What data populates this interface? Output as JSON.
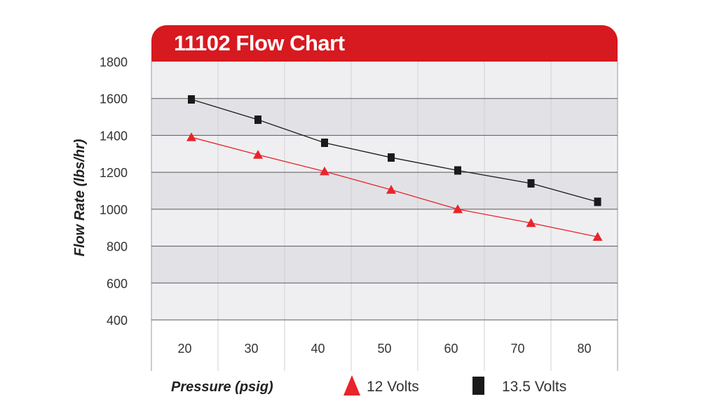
{
  "chart_data": {
    "type": "line",
    "title": "11102 Flow Chart",
    "xlabel": "Pressure (psig)",
    "ylabel": "Flow Rate (lbs/hr)",
    "xlim": [
      15,
      85
    ],
    "ylim": [
      400,
      1800
    ],
    "x_ticks": [
      20,
      30,
      40,
      50,
      60,
      70,
      80
    ],
    "y_ticks": [
      400,
      600,
      800,
      1000,
      1200,
      1400,
      1600,
      1800
    ],
    "grid": "horizontal",
    "legend_position": "bottom",
    "series": [
      {
        "name": "12 Volts",
        "marker": "triangle",
        "color": "#e8242c",
        "x": [
          21,
          31,
          41,
          51,
          61,
          72,
          82
        ],
        "y": [
          1390,
          1295,
          1205,
          1105,
          1000,
          925,
          850
        ]
      },
      {
        "name": "13.5 Volts",
        "marker": "square",
        "color": "#1a1a1a",
        "x": [
          21,
          31,
          41,
          51,
          61,
          72,
          82
        ],
        "y": [
          1595,
          1485,
          1360,
          1280,
          1210,
          1140,
          1040
        ]
      }
    ]
  },
  "colors": {
    "banner": "#d71920",
    "band_light": "#efeff2",
    "band_dark": "#e2e2e6",
    "gridline": "#5a5a5a"
  }
}
